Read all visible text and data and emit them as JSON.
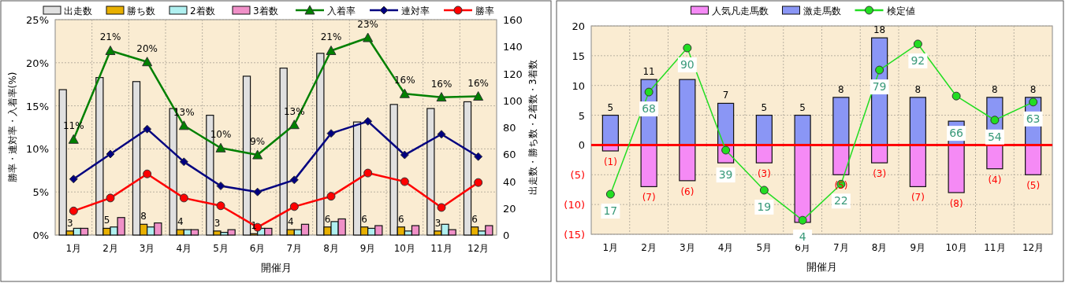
{
  "chart_data": [
    {
      "type": "bar",
      "categories": [
        "1月",
        "2月",
        "3月",
        "4月",
        "5月",
        "6月",
        "7月",
        "8月",
        "9月",
        "10月",
        "11月",
        "12月"
      ],
      "xlabel": "開催月",
      "ylabel": "勝率・連対率・入着率(%)",
      "y2label": "出走数・勝ち数・2着数・3着数",
      "ylim": [
        0,
        25
      ],
      "yticks": [
        {
          "value": 0,
          "label": "0%"
        },
        {
          "value": 5,
          "label": "5%"
        },
        {
          "value": 10,
          "label": "10%"
        },
        {
          "value": 15,
          "label": "15%"
        },
        {
          "value": 20,
          "label": "20%"
        },
        {
          "value": 25,
          "label": "25%"
        }
      ],
      "y2lim": [
        0,
        160
      ],
      "y2ticks": [
        0,
        20,
        40,
        60,
        80,
        100,
        120,
        140,
        160
      ],
      "grid": true,
      "legend": "top",
      "series": [
        {
          "name": "出走数",
          "color": "#e0e0e0",
          "axis": "y2",
          "values": [
            108,
            117,
            114,
            94,
            89,
            118,
            124,
            135,
            84,
            97,
            94,
            99
          ]
        },
        {
          "name": "勝ち数",
          "color": "#e8b000",
          "axis": "y2",
          "values": [
            3,
            5,
            8,
            4,
            3,
            1,
            4,
            6,
            6,
            6,
            3,
            6
          ],
          "value_labels": [
            "3",
            "5",
            "8",
            "4",
            "3",
            "1",
            "4",
            "6",
            "6",
            "6",
            "3",
            "6"
          ]
        },
        {
          "name": "2着数",
          "color": "#b0f0f0",
          "axis": "y2",
          "values": [
            5,
            6,
            6,
            4,
            2,
            5,
            4,
            10,
            5,
            3,
            8,
            3
          ]
        },
        {
          "name": "3着数",
          "color": "#f090c8",
          "axis": "y2",
          "values": [
            5,
            13,
            9,
            4,
            4,
            5,
            8,
            12,
            7,
            7,
            4,
            7
          ]
        },
        {
          "name": "入着率",
          "type": "line",
          "color": "#008000",
          "marker": "triangle",
          "values": [
            11.1,
            21.4,
            20.1,
            12.7,
            10.1,
            9.3,
            12.8,
            21.4,
            22.9,
            16.4,
            16.0,
            16.1
          ],
          "value_labels": [
            "11%",
            "21%",
            "20%",
            "13%",
            "10%",
            "9%",
            "13%",
            "21%",
            "23%",
            "16%",
            "16%",
            "16%"
          ]
        },
        {
          "name": "連対率",
          "type": "line",
          "color": "#000080",
          "marker": "diamond",
          "values": [
            6.5,
            9.4,
            12.3,
            8.5,
            5.7,
            5.0,
            6.4,
            11.8,
            13.2,
            9.3,
            11.7,
            9.1
          ]
        },
        {
          "name": "勝率",
          "type": "line",
          "color": "#ff0000",
          "marker": "circle",
          "values": [
            2.8,
            4.3,
            7.1,
            4.3,
            3.4,
            0.9,
            3.3,
            4.5,
            7.2,
            6.2,
            3.2,
            6.1
          ]
        }
      ]
    },
    {
      "type": "bar",
      "stacked": true,
      "categories": [
        "1月",
        "2月",
        "3月",
        "4月",
        "5月",
        "6月",
        "7月",
        "8月",
        "9月",
        "10月",
        "11月",
        "12月"
      ],
      "xlabel": "開催月",
      "ylim": [
        -15,
        20
      ],
      "yticks": [
        {
          "value": -15,
          "label": "(15)"
        },
        {
          "value": -10,
          "label": "(10)"
        },
        {
          "value": -5,
          "label": "(5)"
        },
        0,
        5,
        10,
        15,
        20
      ],
      "y2lim": [
        -3,
        101
      ],
      "grid": true,
      "legend": "top",
      "ref_lines": [
        {
          "axis": "y",
          "value": 0,
          "color": "#ff0000"
        }
      ],
      "series": [
        {
          "name": "人気凡走馬数",
          "color": "#f58af5",
          "values": [
            -1,
            -7,
            -6,
            -3,
            -3,
            -13,
            -5,
            -3,
            -7,
            -8,
            -4,
            -5
          ],
          "value_labels": [
            "(1)",
            "(7)",
            "(6)",
            null,
            "(3)",
            null,
            "(5)",
            "(3)",
            "(7)",
            "(8)",
            "(4)",
            "(5)"
          ]
        },
        {
          "name": "激走馬数",
          "color": "#8a96f5",
          "values": [
            5,
            11,
            11,
            7,
            5,
            5,
            8,
            18,
            8,
            4,
            8,
            8
          ],
          "value_labels": [
            "5",
            "11",
            null,
            "7",
            "5",
            "5",
            "8",
            "18",
            "8",
            null,
            "8",
            "8"
          ]
        },
        {
          "name": "検定値",
          "type": "line",
          "axis": "y2",
          "color": "#22dd22",
          "marker": "circle",
          "values": [
            17,
            68,
            90,
            39,
            19,
            4,
            22,
            79,
            92,
            66,
            54,
            63
          ],
          "value_labels": [
            "17",
            "68",
            "90",
            "39",
            "19",
            "4",
            "22",
            "79",
            "92",
            "66",
            "54",
            "63"
          ]
        }
      ]
    }
  ]
}
